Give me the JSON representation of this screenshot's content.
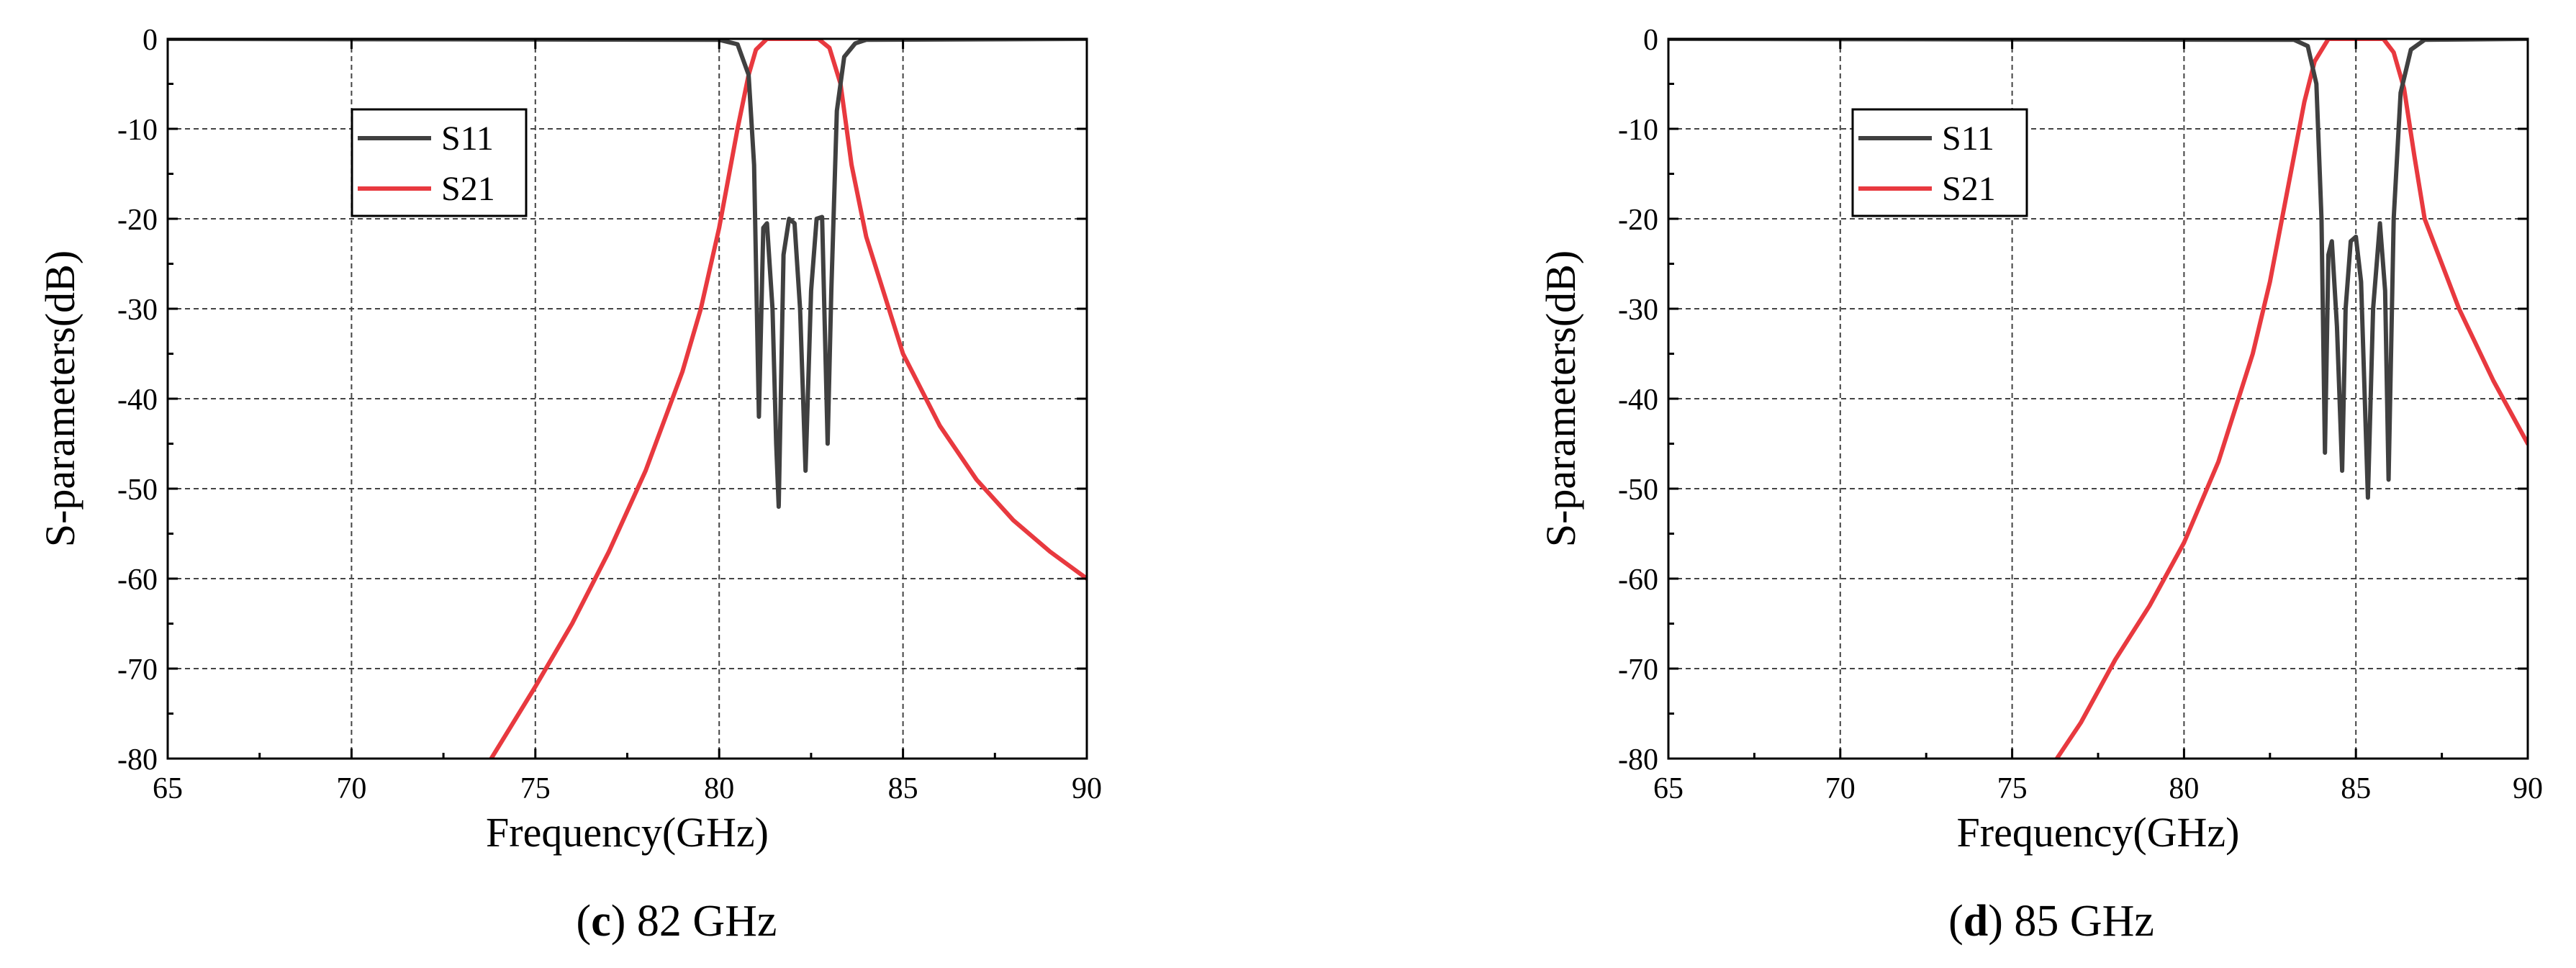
{
  "chart_data": [
    {
      "type": "line",
      "title": "",
      "xlabel": "Frequency(GHz)",
      "ylabel": "S-parameters(dB)",
      "xlim": [
        65,
        90
      ],
      "ylim": [
        -80,
        0
      ],
      "xticks": [
        65,
        70,
        75,
        80,
        85,
        90
      ],
      "yticks": [
        0,
        -10,
        -20,
        -30,
        -40,
        -50,
        -60,
        -70,
        -80
      ],
      "grid": true,
      "legend_position": "upper-left",
      "caption": {
        "letter": "c",
        "close": ")",
        "rest": " 82 GHz"
      },
      "series": [
        {
          "name": "S11",
          "color": "#404040",
          "x": [
            65,
            80.0,
            80.5,
            80.8,
            80.95,
            81.08,
            81.2,
            81.3,
            81.45,
            81.55,
            81.62,
            81.75,
            81.9,
            82.05,
            82.2,
            82.35,
            82.5,
            82.65,
            82.8,
            82.95,
            83.05,
            83.2,
            83.4,
            83.7,
            84.0,
            90
          ],
          "y": [
            0,
            -0.1,
            -0.6,
            -4,
            -14,
            -42,
            -21,
            -20.5,
            -30,
            -45,
            -52,
            -24,
            -20,
            -20.5,
            -30,
            -48,
            -28,
            -20,
            -19.8,
            -45,
            -28,
            -8,
            -2,
            -0.5,
            -0.1,
            0
          ]
        },
        {
          "name": "S21",
          "color": "#e8393f",
          "x": [
            73.8,
            75,
            76,
            77,
            78,
            79,
            79.5,
            80,
            80.5,
            80.8,
            81.0,
            81.3,
            82,
            82.7,
            83.0,
            83.3,
            83.6,
            84,
            85,
            86,
            87,
            88,
            89,
            90
          ],
          "y": [
            -80,
            -72,
            -65,
            -57,
            -48,
            -37,
            -30,
            -21,
            -10,
            -4,
            -1.2,
            0,
            0,
            0,
            -1,
            -5,
            -14,
            -22,
            -35,
            -43,
            -49,
            -53.5,
            -57,
            -60
          ]
        }
      ]
    },
    {
      "type": "line",
      "title": "",
      "xlabel": "Frequency(GHz)",
      "ylabel": "S-parameters(dB)",
      "xlim": [
        65,
        90
      ],
      "ylim": [
        -80,
        0
      ],
      "xticks": [
        65,
        70,
        75,
        80,
        85,
        90
      ],
      "yticks": [
        0,
        -10,
        -20,
        -30,
        -40,
        -50,
        -60,
        -70,
        -80
      ],
      "grid": true,
      "legend_position": "upper-left",
      "caption": {
        "letter": "d",
        "close": ")",
        "rest": " 85 GHz"
      },
      "series": [
        {
          "name": "S11",
          "color": "#404040",
          "x": [
            65,
            83.2,
            83.6,
            83.85,
            84.0,
            84.1,
            84.2,
            84.3,
            84.45,
            84.6,
            84.7,
            84.85,
            85.0,
            85.15,
            85.35,
            85.5,
            85.7,
            85.85,
            85.95,
            86.1,
            86.3,
            86.6,
            87.0,
            90
          ],
          "y": [
            0,
            -0.1,
            -0.8,
            -5,
            -20,
            -46,
            -24,
            -22.5,
            -32,
            -48,
            -30,
            -22.5,
            -22,
            -27,
            -51,
            -30,
            -20.5,
            -28,
            -49,
            -20,
            -6,
            -1.2,
            -0.1,
            0
          ]
        },
        {
          "name": "S21",
          "color": "#e8393f",
          "x": [
            76.3,
            77,
            78,
            79,
            80,
            81,
            82,
            82.5,
            83,
            83.5,
            83.8,
            84.2,
            85,
            85.8,
            86.1,
            86.4,
            86.7,
            87,
            88,
            89,
            90
          ],
          "y": [
            -80,
            -76,
            -69,
            -63,
            -56,
            -47,
            -35,
            -27,
            -17,
            -7,
            -2.5,
            0,
            0,
            0,
            -1.5,
            -5.5,
            -13,
            -20,
            -30,
            -38,
            -45
          ]
        }
      ]
    }
  ]
}
